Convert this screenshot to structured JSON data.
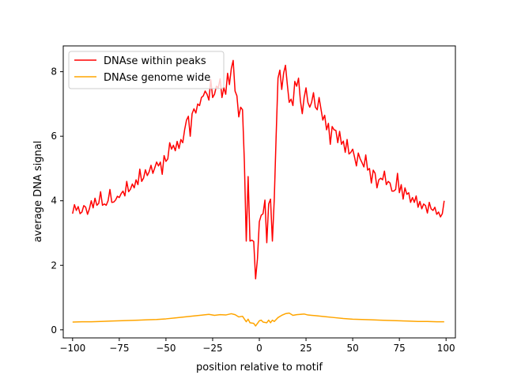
{
  "chart_data": {
    "type": "line",
    "xlabel": "position relative to motif",
    "ylabel": "average DNA signal",
    "xlim": [
      -105,
      105
    ],
    "ylim": [
      -0.25,
      8.8
    ],
    "xticks": [
      -100,
      -75,
      -50,
      -25,
      0,
      25,
      50,
      75,
      100
    ],
    "yticks": [
      0,
      2,
      4,
      6,
      8
    ],
    "legend_position": "upper-left",
    "grid": false,
    "series": [
      {
        "name": "DNAse within peaks",
        "color": "#ff0000",
        "points": [
          [
            -100,
            3.6
          ],
          [
            -99,
            3.88
          ],
          [
            -98,
            3.7
          ],
          [
            -97,
            3.82
          ],
          [
            -96,
            3.6
          ],
          [
            -95,
            3.65
          ],
          [
            -94,
            3.85
          ],
          [
            -93,
            3.8
          ],
          [
            -92,
            3.58
          ],
          [
            -91,
            3.75
          ],
          [
            -90,
            4.0
          ],
          [
            -89,
            3.78
          ],
          [
            -88,
            4.08
          ],
          [
            -87,
            3.86
          ],
          [
            -86,
            3.92
          ],
          [
            -85,
            4.28
          ],
          [
            -84,
            3.86
          ],
          [
            -83,
            3.9
          ],
          [
            -82,
            3.86
          ],
          [
            -81,
            4.0
          ],
          [
            -80,
            4.35
          ],
          [
            -79,
            3.95
          ],
          [
            -78,
            3.96
          ],
          [
            -77,
            4.02
          ],
          [
            -76,
            4.14
          ],
          [
            -75,
            4.1
          ],
          [
            -74,
            4.22
          ],
          [
            -73,
            4.3
          ],
          [
            -72,
            4.15
          ],
          [
            -71,
            4.6
          ],
          [
            -70,
            4.28
          ],
          [
            -69,
            4.36
          ],
          [
            -68,
            4.52
          ],
          [
            -67,
            4.4
          ],
          [
            -66,
            4.65
          ],
          [
            -65,
            4.5
          ],
          [
            -64,
            4.98
          ],
          [
            -63,
            4.6
          ],
          [
            -62,
            4.7
          ],
          [
            -61,
            4.96
          ],
          [
            -60,
            4.78
          ],
          [
            -59,
            4.9
          ],
          [
            -58,
            5.1
          ],
          [
            -57,
            4.85
          ],
          [
            -56,
            5.02
          ],
          [
            -55,
            5.2
          ],
          [
            -54,
            5.08
          ],
          [
            -53,
            5.2
          ],
          [
            -52,
            4.82
          ],
          [
            -51,
            5.4
          ],
          [
            -50,
            5.22
          ],
          [
            -49,
            5.3
          ],
          [
            -48,
            5.8
          ],
          [
            -47,
            5.6
          ],
          [
            -46,
            5.72
          ],
          [
            -45,
            5.55
          ],
          [
            -44,
            5.84
          ],
          [
            -43,
            5.62
          ],
          [
            -42,
            5.9
          ],
          [
            -41,
            5.8
          ],
          [
            -40,
            6.2
          ],
          [
            -39,
            6.5
          ],
          [
            -38,
            6.62
          ],
          [
            -37,
            6.0
          ],
          [
            -36,
            6.7
          ],
          [
            -35,
            6.85
          ],
          [
            -34,
            6.72
          ],
          [
            -33,
            7.0
          ],
          [
            -32,
            6.95
          ],
          [
            -31,
            7.2
          ],
          [
            -30,
            7.25
          ],
          [
            -29,
            7.4
          ],
          [
            -28,
            7.3
          ],
          [
            -27,
            7.12
          ],
          [
            -26,
            7.75
          ],
          [
            -25,
            7.2
          ],
          [
            -24,
            7.3
          ],
          [
            -23,
            7.55
          ],
          [
            -22,
            7.5
          ],
          [
            -21,
            7.78
          ],
          [
            -20,
            7.2
          ],
          [
            -19,
            7.5
          ],
          [
            -18,
            7.3
          ],
          [
            -17,
            7.95
          ],
          [
            -16,
            7.6
          ],
          [
            -15,
            8.1
          ],
          [
            -14,
            8.35
          ],
          [
            -13,
            7.4
          ],
          [
            -12,
            7.25
          ],
          [
            -11,
            6.6
          ],
          [
            -10,
            6.9
          ],
          [
            -9,
            6.82
          ],
          [
            -8,
            5.2
          ],
          [
            -7,
            2.75
          ],
          [
            -6,
            4.75
          ],
          [
            -5,
            2.75
          ],
          [
            -4,
            2.78
          ],
          [
            -3,
            2.74
          ],
          [
            -2,
            1.58
          ],
          [
            -1,
            2.2
          ],
          [
            0,
            3.35
          ],
          [
            1,
            3.55
          ],
          [
            2,
            3.6
          ],
          [
            3,
            4.02
          ],
          [
            4,
            2.7
          ],
          [
            5,
            3.9
          ],
          [
            6,
            4.05
          ],
          [
            7,
            2.75
          ],
          [
            8,
            4.05
          ],
          [
            9,
            6.0
          ],
          [
            10,
            7.8
          ],
          [
            11,
            8.05
          ],
          [
            12,
            7.45
          ],
          [
            13,
            7.95
          ],
          [
            14,
            8.2
          ],
          [
            15,
            7.6
          ],
          [
            16,
            7.05
          ],
          [
            17,
            7.15
          ],
          [
            18,
            6.95
          ],
          [
            19,
            7.7
          ],
          [
            20,
            7.55
          ],
          [
            21,
            7.8
          ],
          [
            22,
            7.1
          ],
          [
            23,
            6.7
          ],
          [
            24,
            7.2
          ],
          [
            25,
            7.5
          ],
          [
            26,
            7.05
          ],
          [
            27,
            6.9
          ],
          [
            28,
            7.05
          ],
          [
            29,
            7.35
          ],
          [
            30,
            6.9
          ],
          [
            31,
            6.82
          ],
          [
            32,
            7.2
          ],
          [
            33,
            6.85
          ],
          [
            34,
            6.5
          ],
          [
            35,
            6.65
          ],
          [
            36,
            6.2
          ],
          [
            37,
            6.4
          ],
          [
            38,
            5.75
          ],
          [
            39,
            6.3
          ],
          [
            40,
            6.2
          ],
          [
            41,
            6.18
          ],
          [
            42,
            5.8
          ],
          [
            43,
            6.15
          ],
          [
            44,
            5.75
          ],
          [
            45,
            5.85
          ],
          [
            46,
            5.5
          ],
          [
            47,
            5.9
          ],
          [
            48,
            5.45
          ],
          [
            49,
            5.5
          ],
          [
            50,
            5.6
          ],
          [
            51,
            5.35
          ],
          [
            52,
            5.08
          ],
          [
            53,
            5.48
          ],
          [
            54,
            5.3
          ],
          [
            55,
            5.18
          ],
          [
            56,
            5.05
          ],
          [
            57,
            5.42
          ],
          [
            58,
            4.95
          ],
          [
            59,
            5.0
          ],
          [
            60,
            4.55
          ],
          [
            61,
            4.95
          ],
          [
            62,
            4.85
          ],
          [
            63,
            4.4
          ],
          [
            64,
            4.65
          ],
          [
            65,
            4.7
          ],
          [
            66,
            4.65
          ],
          [
            67,
            4.92
          ],
          [
            68,
            4.5
          ],
          [
            69,
            4.6
          ],
          [
            70,
            4.55
          ],
          [
            71,
            4.3
          ],
          [
            72,
            4.3
          ],
          [
            73,
            4.35
          ],
          [
            74,
            4.85
          ],
          [
            75,
            4.25
          ],
          [
            76,
            4.5
          ],
          [
            77,
            4.05
          ],
          [
            78,
            4.4
          ],
          [
            79,
            4.2
          ],
          [
            80,
            4.25
          ],
          [
            81,
            3.95
          ],
          [
            82,
            4.1
          ],
          [
            83,
            3.95
          ],
          [
            84,
            4.15
          ],
          [
            85,
            3.8
          ],
          [
            86,
            3.98
          ],
          [
            87,
            3.75
          ],
          [
            88,
            3.9
          ],
          [
            89,
            3.85
          ],
          [
            90,
            3.62
          ],
          [
            91,
            3.95
          ],
          [
            92,
            3.75
          ],
          [
            93,
            3.7
          ],
          [
            94,
            3.8
          ],
          [
            95,
            3.58
          ],
          [
            96,
            3.65
          ],
          [
            97,
            3.5
          ],
          [
            98,
            3.6
          ],
          [
            99,
            4.0
          ]
        ]
      },
      {
        "name": "DNAse genome wide",
        "color": "#ffa500",
        "points": [
          [
            -100,
            0.24
          ],
          [
            -95,
            0.25
          ],
          [
            -90,
            0.25
          ],
          [
            -85,
            0.26
          ],
          [
            -80,
            0.27
          ],
          [
            -75,
            0.28
          ],
          [
            -70,
            0.29
          ],
          [
            -65,
            0.3
          ],
          [
            -60,
            0.31
          ],
          [
            -55,
            0.32
          ],
          [
            -50,
            0.34
          ],
          [
            -45,
            0.37
          ],
          [
            -40,
            0.4
          ],
          [
            -35,
            0.43
          ],
          [
            -30,
            0.46
          ],
          [
            -27,
            0.48
          ],
          [
            -24,
            0.45
          ],
          [
            -21,
            0.47
          ],
          [
            -18,
            0.46
          ],
          [
            -15,
            0.5
          ],
          [
            -13,
            0.47
          ],
          [
            -11,
            0.4
          ],
          [
            -9,
            0.42
          ],
          [
            -7,
            0.25
          ],
          [
            -6,
            0.33
          ],
          [
            -5,
            0.22
          ],
          [
            -3,
            0.2
          ],
          [
            -2,
            0.12
          ],
          [
            0,
            0.28
          ],
          [
            1,
            0.3
          ],
          [
            2,
            0.24
          ],
          [
            4,
            0.22
          ],
          [
            5,
            0.3
          ],
          [
            6,
            0.22
          ],
          [
            7,
            0.3
          ],
          [
            8,
            0.26
          ],
          [
            10,
            0.38
          ],
          [
            12,
            0.45
          ],
          [
            14,
            0.5
          ],
          [
            16,
            0.52
          ],
          [
            18,
            0.45
          ],
          [
            20,
            0.47
          ],
          [
            22,
            0.48
          ],
          [
            24,
            0.49
          ],
          [
            26,
            0.46
          ],
          [
            28,
            0.45
          ],
          [
            30,
            0.44
          ],
          [
            35,
            0.41
          ],
          [
            40,
            0.38
          ],
          [
            45,
            0.35
          ],
          [
            50,
            0.33
          ],
          [
            55,
            0.32
          ],
          [
            60,
            0.31
          ],
          [
            65,
            0.3
          ],
          [
            70,
            0.29
          ],
          [
            75,
            0.28
          ],
          [
            80,
            0.27
          ],
          [
            85,
            0.26
          ],
          [
            90,
            0.26
          ],
          [
            95,
            0.25
          ],
          [
            99,
            0.25
          ]
        ]
      }
    ]
  }
}
